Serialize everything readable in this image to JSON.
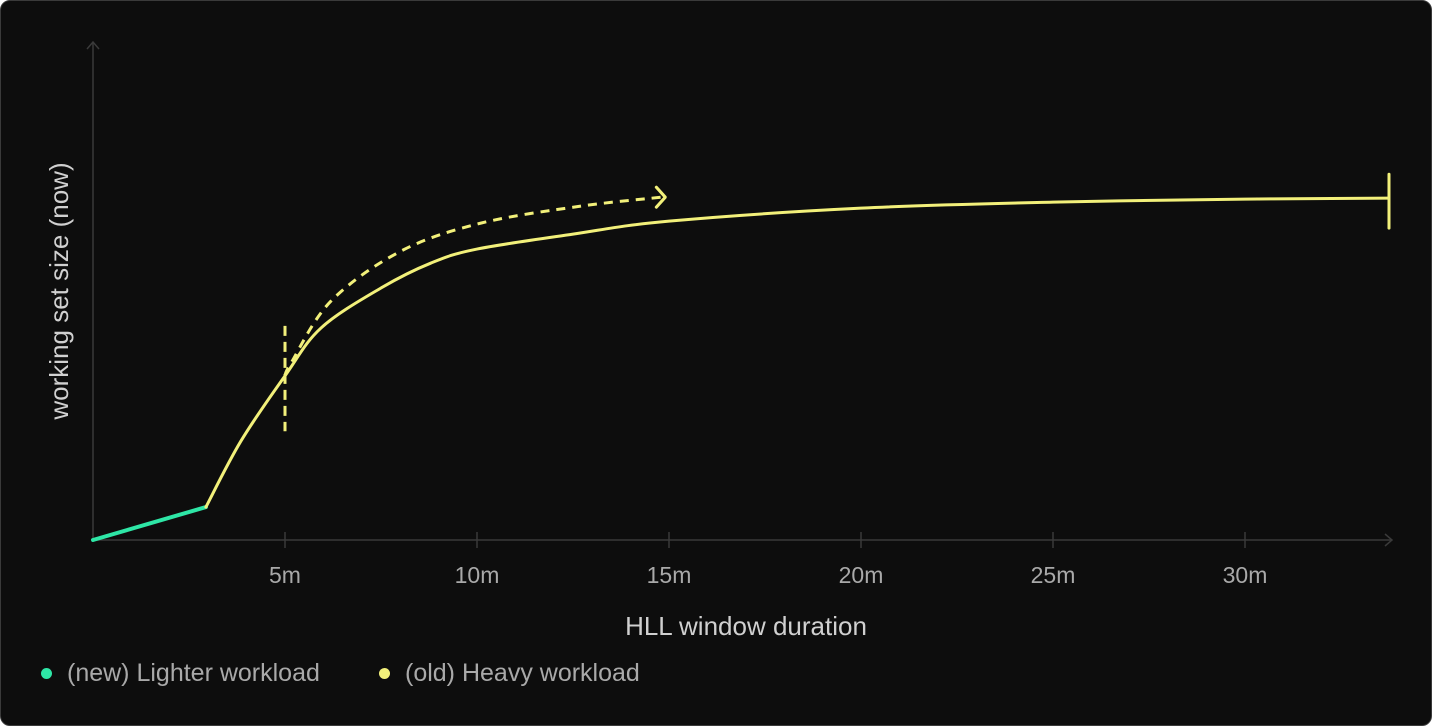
{
  "chart_data": {
    "type": "line",
    "xlabel": "HLL window duration",
    "ylabel": "working set size (now)",
    "xlim": [
      0,
      34
    ],
    "ylim": [
      0,
      100
    ],
    "xticks": [
      5,
      10,
      15,
      20,
      25,
      30
    ],
    "xtick_labels": [
      "5m",
      "10m",
      "15m",
      "20m",
      "25m",
      "30m"
    ],
    "yticks": [],
    "grid": false,
    "legend_placement": "bottom-left",
    "series": [
      {
        "name": "(new) Lighter workload",
        "color": "#2ee6a6",
        "style": "solid",
        "points": [
          [
            0,
            0
          ],
          [
            2.94,
            6.6
          ]
        ]
      },
      {
        "name": "(old) Heavy workload",
        "color": "#f2f07a",
        "style": "solid",
        "points": [
          [
            2.94,
            6.6
          ],
          [
            3.85,
            19.8
          ],
          [
            5,
            32.9
          ],
          [
            5.94,
            42.5
          ],
          [
            7.5,
            50.5
          ],
          [
            8.8,
            55.5
          ],
          [
            10,
            58.3
          ],
          [
            12.5,
            61.3
          ],
          [
            15,
            63.9
          ],
          [
            20,
            66.5
          ],
          [
            25,
            67.7
          ],
          [
            30,
            68.3
          ],
          [
            33.75,
            68.5
          ]
        ]
      }
    ],
    "annotations": {
      "shift_arrow": {
        "color": "#f2f07a",
        "style": "dashed",
        "points": [
          [
            5,
            32.9
          ],
          [
            5.16,
            35.5
          ],
          [
            6.2,
            47.9
          ],
          [
            8.02,
            57.9
          ],
          [
            10.1,
            63.5
          ],
          [
            12.7,
            66.9
          ],
          [
            14.8,
            68.7
          ]
        ]
      },
      "marker_line": {
        "x": 5,
        "y_range": [
          21.8,
          42.9
        ],
        "style": "dashed",
        "color": "#f2f07a"
      },
      "end_cap": {
        "x": 33.75,
        "y_range": [
          62.5,
          73.3
        ],
        "color": "#f2f07a"
      }
    }
  },
  "colors": {
    "background": "#0d0d0d",
    "axis": "#3a3a3a",
    "text": "#a9a9a9"
  }
}
